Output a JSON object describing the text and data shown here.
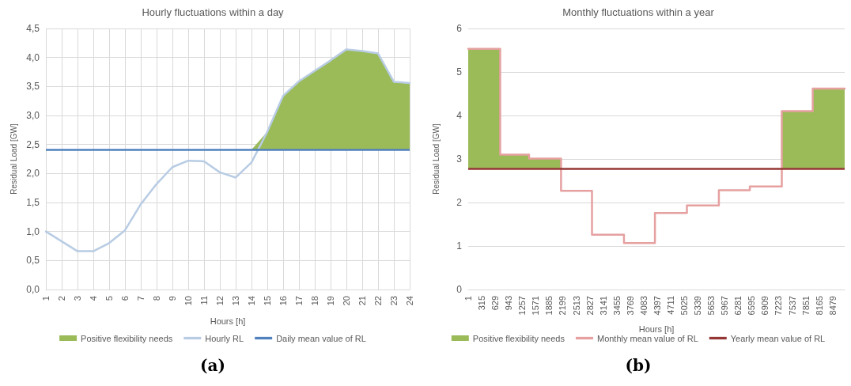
{
  "chart_data": [
    {
      "type": "line",
      "title": "Hourly fluctuations within a day",
      "xlabel": "Hours [h]",
      "ylabel": "Residual Load [GW]",
      "categories": [
        "1",
        "2",
        "3",
        "4",
        "5",
        "6",
        "7",
        "8",
        "9",
        "10",
        "11",
        "12",
        "13",
        "14",
        "15",
        "16",
        "17",
        "18",
        "19",
        "20",
        "21",
        "22",
        "23",
        "24"
      ],
      "series": [
        {
          "name": "Positive flexibility needs",
          "type": "area",
          "color": "#9bbb59",
          "values": [
            null,
            null,
            null,
            null,
            null,
            null,
            null,
            null,
            null,
            null,
            null,
            null,
            null,
            2.41,
            2.72,
            3.34,
            3.59,
            3.77,
            3.95,
            4.14,
            4.11,
            4.07,
            3.58,
            3.56
          ]
        },
        {
          "name": "Hourly RL",
          "type": "line",
          "color": "#b8cce4",
          "values": [
            1.0,
            0.83,
            0.66,
            0.66,
            0.8,
            1.02,
            1.47,
            1.82,
            2.11,
            2.22,
            2.21,
            2.02,
            1.93,
            2.19,
            2.72,
            3.34,
            3.59,
            3.77,
            3.95,
            4.14,
            4.11,
            4.07,
            3.58,
            3.56
          ]
        }
      ],
      "ref_lines": [
        {
          "axis": "y",
          "value": 2.41,
          "label": "Daily mean value of RL",
          "color": "#4f81bd"
        }
      ],
      "ylim": [
        0,
        4.5
      ],
      "yticks": [
        {
          "value": 0,
          "label": "0,0"
        },
        {
          "value": 0.5,
          "label": "0,5"
        },
        {
          "value": 1,
          "label": "1,0"
        },
        {
          "value": 1.5,
          "label": "1,5"
        },
        {
          "value": 2,
          "label": "2,0"
        },
        {
          "value": 2.5,
          "label": "2,5"
        },
        {
          "value": 3,
          "label": "3,0"
        },
        {
          "value": 3.5,
          "label": "3,5"
        },
        {
          "value": 4,
          "label": "4,0"
        },
        {
          "value": 4.5,
          "label": "4,5"
        }
      ],
      "grid": true,
      "legend": "bottom",
      "marker": "none",
      "annotations": [
        "(a)"
      ]
    },
    {
      "type": "step",
      "title": "Monthly fluctuations within a year",
      "xlabel": "Hours [h]",
      "ylabel": "Residual Load [GW]",
      "series": [
        {
          "name": "Positive flexibility needs",
          "type": "area",
          "color": "#9bbb59",
          "x": [
            1,
            745,
            1417,
            2161
          ],
          "values": [
            5.53,
            3.1,
            3.01,
            3.01
          ]
        },
        {
          "type": "area",
          "color": "#9bbb59",
          "x": [
            7297,
            8017,
            8760
          ],
          "values": [
            4.1,
            4.62,
            4.62
          ]
        },
        {
          "name": "Monthly mean value of RL",
          "type": "step",
          "color": "#e6a0a0",
          "x": [
            1,
            745,
            1417,
            2161,
            2881,
            3625,
            4345,
            5089,
            5833,
            6553,
            7297,
            8017,
            8760
          ],
          "values": [
            5.53,
            3.1,
            3.01,
            2.27,
            1.26,
            1.07,
            1.76,
            1.93,
            2.28,
            2.37,
            4.1,
            4.62,
            4.62
          ]
        }
      ],
      "ref_lines": [
        {
          "axis": "y",
          "value": 2.78,
          "label": "Yearly mean value of RL",
          "color": "#953735"
        }
      ],
      "xlim": [
        1,
        8760
      ],
      "xticks": [
        1,
        315,
        629,
        943,
        1257,
        1571,
        1885,
        2199,
        2513,
        2827,
        3141,
        3455,
        3769,
        4083,
        4397,
        4711,
        5025,
        5339,
        5653,
        5967,
        6281,
        6595,
        6909,
        7223,
        7537,
        7851,
        8165,
        8479
      ],
      "ylim": [
        0,
        6
      ],
      "yticks": [
        0,
        1,
        2,
        3,
        4,
        5,
        6
      ],
      "grid": "y",
      "legend": "bottom",
      "marker": "none",
      "annotations": [
        "(b)"
      ]
    }
  ]
}
